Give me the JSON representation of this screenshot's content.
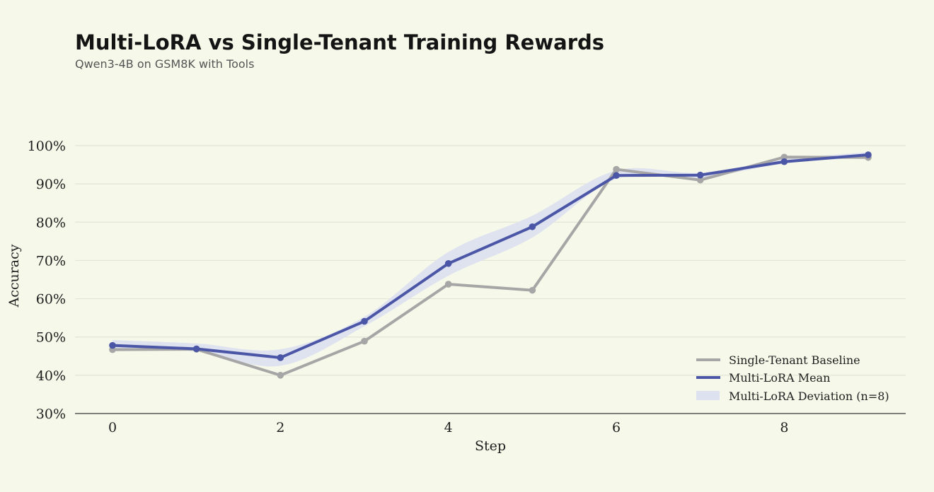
{
  "chart_data": {
    "type": "line",
    "title": "Multi-LoRA vs Single-Tenant Training Rewards",
    "subtitle": "Qwen3-4B on GSM8K with Tools",
    "xlabel": "Step",
    "ylabel": "Accuracy",
    "x": [
      0,
      1,
      2,
      3,
      4,
      5,
      6,
      7,
      8,
      9
    ],
    "xticks": [
      0,
      2,
      4,
      6,
      8
    ],
    "xtick_labels": [
      "0",
      "2",
      "4",
      "6",
      "8"
    ],
    "ylim": [
      30,
      100
    ],
    "yticks": [
      30,
      40,
      50,
      60,
      70,
      80,
      90,
      100
    ],
    "ytick_labels": [
      "30%",
      "40%",
      "50%",
      "60%",
      "70%",
      "80%",
      "90%",
      "100%"
    ],
    "grid": "horizontal",
    "legend_position": "bottom-right",
    "series": [
      {
        "name": "Single-Tenant Baseline",
        "color": "#a6a6a6",
        "values": [
          46.7,
          46.8,
          40.0,
          48.9,
          63.8,
          62.2,
          93.8,
          91.0,
          97.0,
          96.9
        ]
      },
      {
        "name": "Multi-LoRA Mean",
        "color": "#4b57a6",
        "values": [
          47.8,
          46.9,
          44.6,
          54.1,
          69.2,
          78.8,
          92.2,
          92.3,
          95.8,
          97.6
        ]
      }
    ],
    "band": {
      "name": "Multi-LoRA Deviation (n=8)",
      "color": "#dde1f0",
      "lower": [
        46.8,
        46.2,
        42.5,
        52.8,
        66.0,
        76.0,
        91.3,
        91.6,
        95.3,
        97.0
      ],
      "upper": [
        49.2,
        48.3,
        46.8,
        55.3,
        72.2,
        81.7,
        93.5,
        92.9,
        96.4,
        98.3
      ]
    }
  }
}
